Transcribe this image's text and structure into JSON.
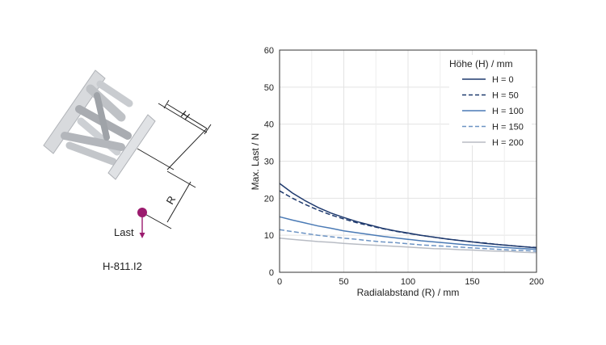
{
  "illustration": {
    "model": "H-811.I2",
    "load_label": "Last",
    "dim_h": "H",
    "dim_r": "R",
    "load_color": "#9b1b6e"
  },
  "chart_data": {
    "type": "line",
    "xlabel": "Radialabstand (R) / mm",
    "ylabel": "Max. Last / N",
    "xlim": [
      0,
      200
    ],
    "ylim": [
      0,
      60
    ],
    "xticks": [
      0,
      50,
      100,
      150,
      200
    ],
    "yticks": [
      0,
      10,
      20,
      30,
      40,
      50,
      60
    ],
    "grid": true,
    "legend_title": "Höhe (H) / mm",
    "legend_position": "top-right",
    "x": [
      0,
      10,
      20,
      30,
      40,
      50,
      60,
      70,
      80,
      90,
      100,
      110,
      120,
      130,
      140,
      150,
      160,
      170,
      180,
      190,
      200
    ],
    "series": [
      {
        "name": "H = 0",
        "color": "#1f3a6e",
        "dash": "solid",
        "values": [
          24.0,
          21.4,
          19.3,
          17.5,
          16.0,
          14.8,
          13.7,
          12.8,
          11.9,
          11.2,
          10.6,
          10.0,
          9.5,
          9.0,
          8.6,
          8.2,
          7.8,
          7.5,
          7.2,
          6.9,
          6.6
        ]
      },
      {
        "name": "H = 50",
        "color": "#1f3a6e",
        "dash": "dashed",
        "values": [
          22.0,
          20.0,
          18.3,
          16.8,
          15.5,
          14.4,
          13.4,
          12.6,
          11.8,
          11.1,
          10.5,
          10.0,
          9.5,
          9.0,
          8.6,
          8.2,
          7.9,
          7.5,
          7.2,
          6.9,
          6.7
        ]
      },
      {
        "name": "H = 100",
        "color": "#4a7ab5",
        "dash": "solid",
        "values": [
          15.0,
          14.1,
          13.3,
          12.5,
          11.9,
          11.2,
          10.7,
          10.2,
          9.7,
          9.3,
          8.9,
          8.5,
          8.2,
          7.9,
          7.6,
          7.3,
          7.1,
          6.8,
          6.6,
          6.4,
          6.2
        ]
      },
      {
        "name": "H = 150",
        "color": "#6d94c4",
        "dash": "dashed",
        "values": [
          11.5,
          11.0,
          10.5,
          10.0,
          9.6,
          9.2,
          8.9,
          8.5,
          8.2,
          8.0,
          7.7,
          7.4,
          7.2,
          7.0,
          6.8,
          6.6,
          6.4,
          6.2,
          6.0,
          5.9,
          5.7
        ]
      },
      {
        "name": "H = 200",
        "color": "#b8bcc4",
        "dash": "solid",
        "values": [
          9.2,
          8.9,
          8.6,
          8.3,
          8.1,
          7.8,
          7.6,
          7.4,
          7.2,
          7.0,
          6.8,
          6.6,
          6.4,
          6.3,
          6.1,
          6.0,
          5.8,
          5.7,
          5.6,
          5.4,
          5.3
        ]
      }
    ]
  }
}
